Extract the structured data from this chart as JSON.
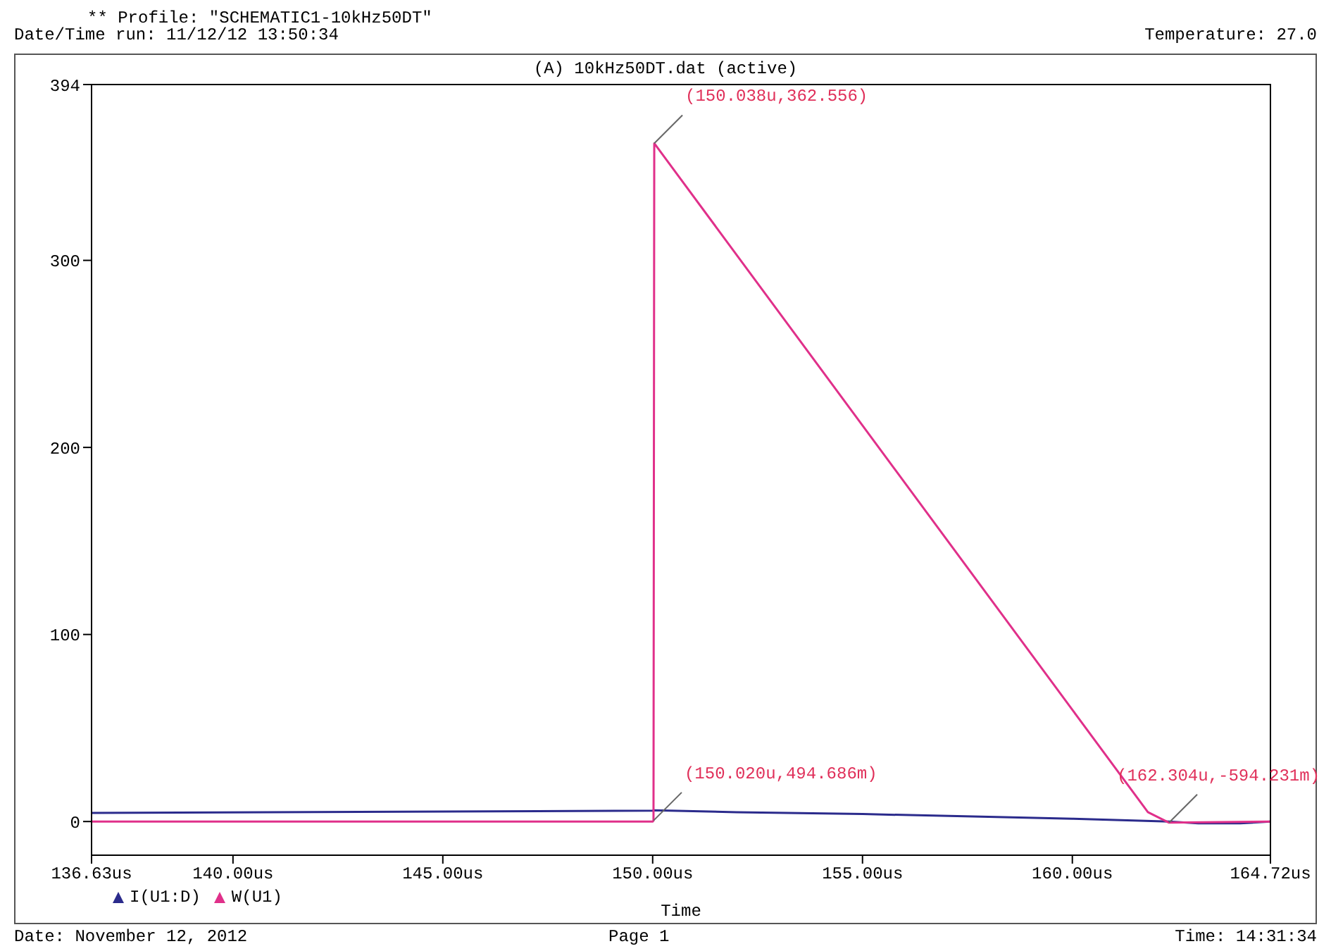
{
  "chart_data": {
    "type": "line",
    "title": "(A) 10kHz50DT.dat (active)",
    "xlabel": "Time",
    "annotations": [
      "** Profile: \"SCHEMATIC1-10kHz50DT\"",
      "Date/Time run: 11/12/12 13:50:34",
      "Temperature: 27.0",
      "Date: November 12, 2012",
      "Page 1",
      "Time: 14:31:34",
      {
        "text": "(150.038u,362.556)",
        "x": 150.038,
        "y": 362.556
      },
      {
        "text": "(150.020u,494.686m)",
        "x": 150.02,
        "y": 0.494686
      },
      {
        "text": "(162.304u,-594.231m)",
        "x": 162.304,
        "y": -0.594231
      }
    ],
    "xlim": [
      136.63,
      164.72
    ],
    "xticks": [
      {
        "value": 136.63,
        "label": "136.63us"
      },
      {
        "value": 140,
        "label": "140.00us"
      },
      {
        "value": 145,
        "label": "145.00us"
      },
      {
        "value": 150,
        "label": "150.00us"
      },
      {
        "value": 155,
        "label": "155.00us"
      },
      {
        "value": 160,
        "label": "160.00us"
      },
      {
        "value": 164.72,
        "label": "164.72us"
      }
    ],
    "ylim": [
      -18,
      394
    ],
    "yticks": [
      0,
      100,
      200,
      300,
      394
    ],
    "legend": "bottom left",
    "marker": "none",
    "line_style": "solid",
    "series": [
      {
        "name": "I(U1:D)",
        "color": "#2b2b8c",
        "x": [
          136.63,
          150,
          150.02,
          152,
          155,
          158,
          160,
          162.304,
          163,
          164,
          164.72
        ],
        "values": [
          4.6,
          5.8,
          6,
          5,
          4,
          2.5,
          1.5,
          0,
          -1,
          -1,
          0
        ]
      },
      {
        "name": "W(U1)",
        "color": "#e0308a",
        "x": [
          136.63,
          150,
          150.02,
          150.038,
          161.8,
          162.304,
          164.72
        ],
        "values": [
          0,
          0,
          0.5,
          362.6,
          5,
          -0.6,
          0
        ]
      }
    ]
  }
}
